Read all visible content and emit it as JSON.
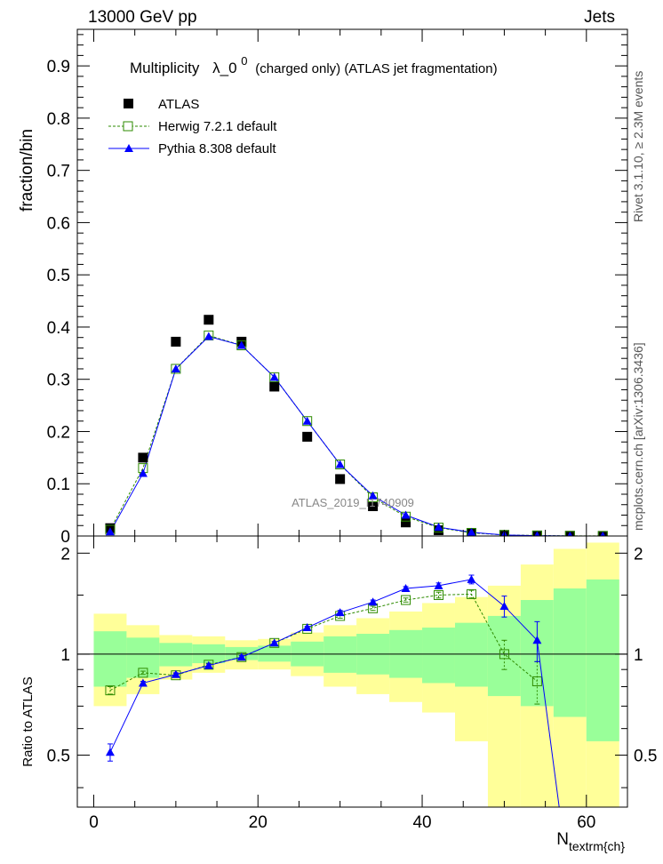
{
  "header": {
    "left": "13000 GeV pp",
    "right": "Jets"
  },
  "side_labels": {
    "rivet": "Rivet 3.1.10, ≥ 2.3M events",
    "mcplots": "mcplots.cern.ch [arXiv:1306.3436]"
  },
  "watermark": "ATLAS_2019_I1740909",
  "colors": {
    "data": "#000000",
    "herwig": "#2e8b00",
    "pythia": "#0000ff",
    "band_inner": "#99ff99",
    "band_outer": "#ffff99",
    "watermark": "#888888",
    "side_text": "#555555"
  },
  "chart_data": [
    {
      "type": "line",
      "title_parts": {
        "prefix": "Multiplicity",
        "symbol": "λ_0",
        "superscript": "0",
        "suffix": "(charged only) (ATLAS jet fragmentation)"
      },
      "ylabel": "fraction/bin",
      "xlim": [
        -2,
        65
      ],
      "ylim": [
        0,
        0.97
      ],
      "yticks": [
        "0",
        "0.1",
        "0.2",
        "0.3",
        "0.4",
        "0.5",
        "0.6",
        "0.7",
        "0.8",
        "0.9"
      ],
      "grid": false,
      "legend_position": "top-left",
      "bin_edges": [
        0,
        4,
        8,
        12,
        16,
        20,
        24,
        28,
        32,
        36,
        40,
        44,
        48,
        52,
        56,
        60,
        64
      ],
      "x": [
        2,
        6,
        10,
        14,
        18,
        22,
        26,
        30,
        34,
        38,
        42,
        46,
        50,
        54,
        58,
        62
      ],
      "series": [
        {
          "name": "ATLAS",
          "style": "black-square",
          "values": [
            0.015,
            0.15,
            0.372,
            0.414,
            0.372,
            0.286,
            0.19,
            0.109,
            0.057,
            0.026,
            0.011,
            0.005,
            0.002,
            0.001,
            0.0004,
            0.0002
          ]
        },
        {
          "name": "Herwig 7.2.1 default",
          "style": "green-dashed-open-square",
          "values": [
            0.012,
            0.13,
            0.32,
            0.384,
            0.365,
            0.304,
            0.22,
            0.137,
            0.074,
            0.037,
            0.016,
            0.006,
            0.002,
            0.001,
            0.0003,
            0.0001
          ]
        },
        {
          "name": "Pythia 8.308 default",
          "style": "blue-solid-triangle",
          "values": [
            0.008,
            0.12,
            0.32,
            0.382,
            0.365,
            0.304,
            0.22,
            0.137,
            0.077,
            0.04,
            0.017,
            0.007,
            0.002,
            0.0007,
            0.0001,
            0.0
          ]
        }
      ]
    },
    {
      "type": "line",
      "ylabel": "Ratio to ATLAS",
      "xlabel_main": "N",
      "xlabel_sub": "textrm{ch}",
      "xlim": [
        -2,
        65
      ],
      "ylim": [
        0.35,
        2.25
      ],
      "yticks": [
        "0.5",
        "1",
        "2"
      ],
      "xticks": [
        "0",
        "20",
        "40",
        "60"
      ],
      "reference_line": 1,
      "bin_edges": [
        0,
        4,
        8,
        12,
        16,
        20,
        24,
        28,
        32,
        36,
        40,
        44,
        48,
        52,
        56,
        60,
        64
      ],
      "x": [
        2,
        6,
        10,
        14,
        18,
        22,
        26,
        30,
        34,
        38,
        42,
        46,
        50,
        54,
        58,
        62
      ],
      "bands": {
        "inner": [
          [
            0.8,
            1.17
          ],
          [
            0.85,
            1.12
          ],
          [
            0.92,
            1.08
          ],
          [
            0.94,
            1.07
          ],
          [
            0.96,
            1.05
          ],
          [
            0.95,
            1.06
          ],
          [
            0.92,
            1.09
          ],
          [
            0.88,
            1.13
          ],
          [
            0.87,
            1.15
          ],
          [
            0.85,
            1.18
          ],
          [
            0.82,
            1.2
          ],
          [
            0.8,
            1.24
          ],
          [
            0.75,
            1.3
          ],
          [
            0.7,
            1.45
          ],
          [
            0.65,
            1.57
          ],
          [
            0.55,
            1.67
          ]
        ],
        "outer": [
          [
            0.7,
            1.32
          ],
          [
            0.76,
            1.22
          ],
          [
            0.84,
            1.14
          ],
          [
            0.88,
            1.13
          ],
          [
            0.9,
            1.1
          ],
          [
            0.9,
            1.11
          ],
          [
            0.86,
            1.16
          ],
          [
            0.8,
            1.22
          ],
          [
            0.76,
            1.28
          ],
          [
            0.72,
            1.34
          ],
          [
            0.67,
            1.42
          ],
          [
            0.55,
            1.48
          ],
          [
            0.2,
            1.6
          ],
          [
            0.2,
            1.85
          ],
          [
            0.2,
            2.06
          ],
          [
            0.2,
            2.15
          ]
        ]
      },
      "series": [
        {
          "name": "Herwig 7.2.1 default",
          "values": [
            0.78,
            0.88,
            0.865,
            0.93,
            0.98,
            1.08,
            1.19,
            1.3,
            1.37,
            1.45,
            1.5,
            1.51,
            1.0,
            0.83,
            null,
            null
          ],
          "errors": [
            0.02,
            0.01,
            0.01,
            0.01,
            0.01,
            0.01,
            0.01,
            0.02,
            0.02,
            0.02,
            0.03,
            0.04,
            0.1,
            0.12,
            null,
            null
          ]
        },
        {
          "name": "Pythia 8.308 default",
          "values": [
            0.51,
            0.82,
            0.87,
            0.925,
            0.98,
            1.08,
            1.2,
            1.33,
            1.43,
            1.57,
            1.6,
            1.67,
            1.39,
            1.1,
            0.2,
            null
          ],
          "errors": [
            0.03,
            0.01,
            0.01,
            0.01,
            0.01,
            0.01,
            0.01,
            0.02,
            0.02,
            0.02,
            0.03,
            0.05,
            0.1,
            0.15,
            null,
            null
          ]
        }
      ]
    }
  ]
}
